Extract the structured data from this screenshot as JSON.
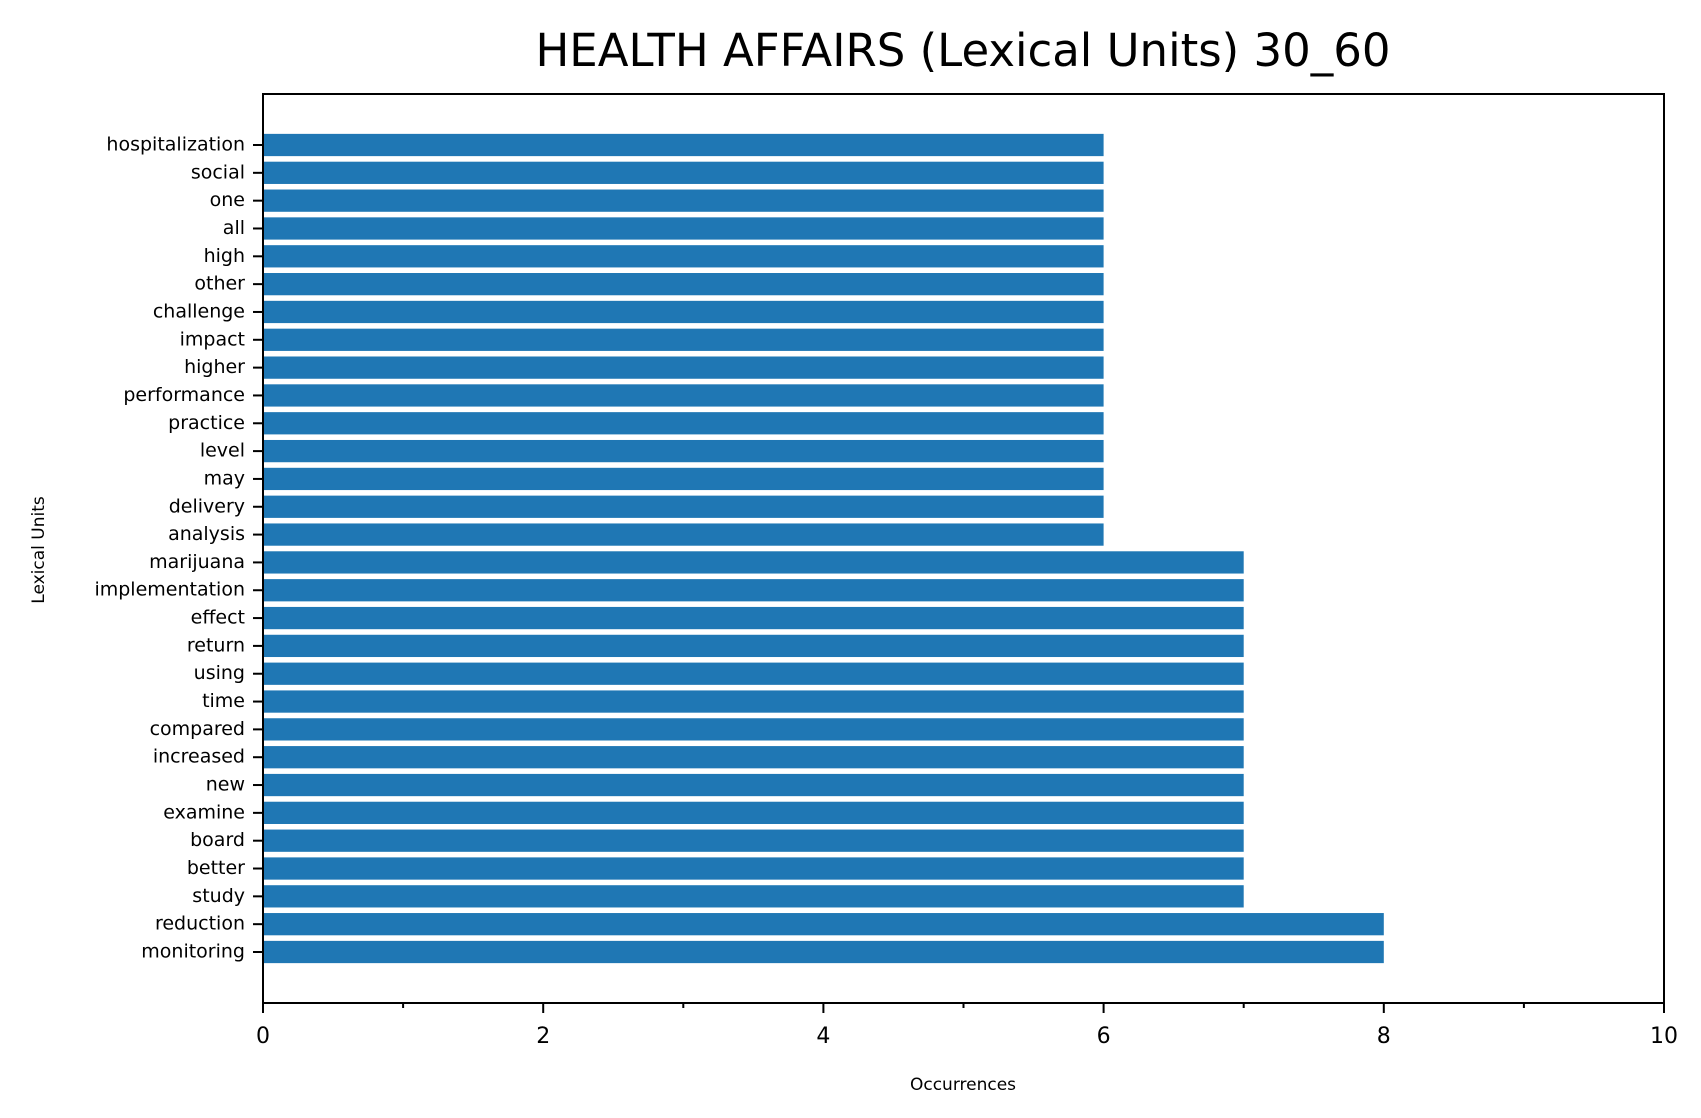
{
  "chart_data": {
    "type": "bar",
    "orientation": "horizontal",
    "title": "HEALTH AFFAIRS (Lexical Units) 30_60",
    "xlabel": "Occurrences",
    "ylabel": "Lexical Units",
    "xlim": [
      0,
      10
    ],
    "xticks": [
      "0",
      "2",
      "4",
      "6",
      "8",
      "10"
    ],
    "grid": false,
    "color": "#1f77b4",
    "categories": [
      "monitoring",
      "reduction",
      "study",
      "better",
      "board",
      "examine",
      "new",
      "increased",
      "compared",
      "time",
      "using",
      "return",
      "effect",
      "implementation",
      "marijuana",
      "analysis",
      "delivery",
      "may",
      "level",
      "practice",
      "performance",
      "higher",
      "impact",
      "challenge",
      "other",
      "high",
      "all",
      "one",
      "social",
      "hospitalization"
    ],
    "values": [
      8,
      8,
      7,
      7,
      7,
      7,
      7,
      7,
      7,
      7,
      7,
      7,
      7,
      7,
      7,
      6,
      6,
      6,
      6,
      6,
      6,
      6,
      6,
      6,
      6,
      6,
      6,
      6,
      6,
      6
    ]
  }
}
